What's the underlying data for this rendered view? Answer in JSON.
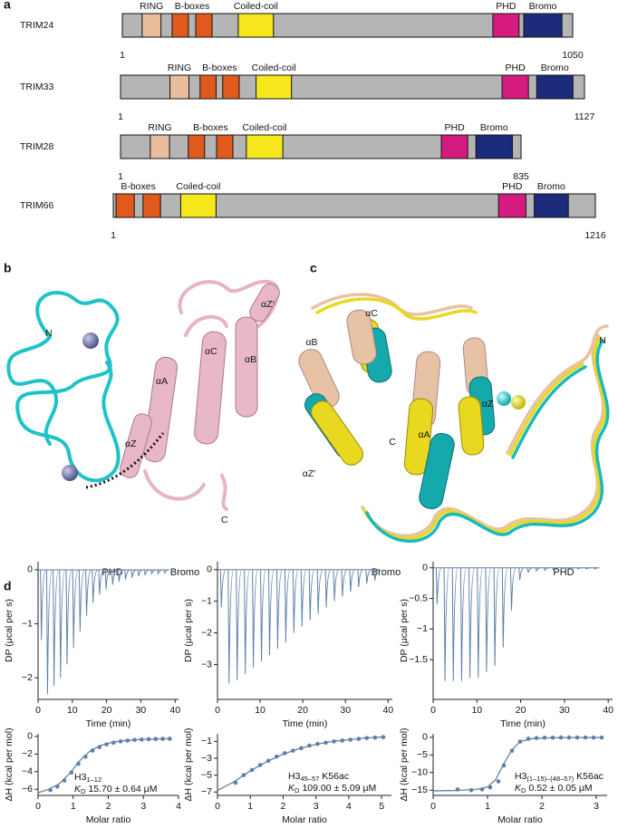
{
  "panel_a": {
    "label": "a",
    "proteins": [
      {
        "name": "TRIM24",
        "start": 1,
        "end": 1050,
        "domains": [
          {
            "label": "RING",
            "color": "#e9bd9c",
            "segments": [
              [
                47,
                91
              ]
            ]
          },
          {
            "label": "B-boxes",
            "color": "#e05a1e",
            "segments": [
              [
                117,
                155
              ],
              [
                172,
                210
              ]
            ]
          },
          {
            "label": "Coiled-coil",
            "color": "#f6e71d",
            "segments": [
              [
                271,
                353
              ]
            ]
          },
          {
            "label": "PHD",
            "color": "#d51b7f",
            "segments": [
              [
                864,
                925
              ]
            ]
          },
          {
            "label": "Bromo",
            "color": "#1d2b7d",
            "segments": [
              [
                936,
                1025
              ]
            ]
          }
        ]
      },
      {
        "name": "TRIM33",
        "start": 1,
        "end": 1127,
        "domains": [
          {
            "label": "RING",
            "color": "#e9bd9c",
            "segments": [
              [
                121,
                167
              ]
            ]
          },
          {
            "label": "B-boxes",
            "color": "#e05a1e",
            "segments": [
              [
                194,
                233
              ],
              [
                249,
                289
              ]
            ]
          },
          {
            "label": "Coiled-coil",
            "color": "#f6e71d",
            "segments": [
              [
                330,
                416
              ]
            ]
          },
          {
            "label": "PHD",
            "color": "#d51b7f",
            "segments": [
              [
                927,
                991
              ]
            ]
          },
          {
            "label": "Bromo",
            "color": "#1d2b7d",
            "segments": [
              [
                1011,
                1099
              ]
            ]
          }
        ]
      },
      {
        "name": "TRIM28",
        "start": 1,
        "end": 835,
        "domains": [
          {
            "label": "RING",
            "color": "#e9bd9c",
            "segments": [
              [
                63,
                103
              ]
            ]
          },
          {
            "label": "B-boxes",
            "color": "#e05a1e",
            "segments": [
              [
                142,
                176
              ],
              [
                201,
                235
              ]
            ]
          },
          {
            "label": "Coiled-coil",
            "color": "#f6e71d",
            "segments": [
              [
                263,
                339
              ]
            ]
          },
          {
            "label": "PHD",
            "color": "#d51b7f",
            "segments": [
              [
                669,
                724
              ]
            ]
          },
          {
            "label": "Bromo",
            "color": "#1d2b7d",
            "segments": [
              [
                741,
                817
              ]
            ]
          }
        ]
      },
      {
        "name": "TRIM66",
        "start": 1,
        "end": 1216,
        "domains": [
          {
            "label": "B-boxes",
            "color": "#e05a1e",
            "segments": [
              [
                8,
                54
              ],
              [
                76,
                120
              ]
            ]
          },
          {
            "label": "Coiled-coil",
            "color": "#f6e71d",
            "segments": [
              [
                171,
                260
              ]
            ]
          },
          {
            "label": "PHD",
            "color": "#d51b7f",
            "segments": [
              [
                972,
                1041
              ]
            ]
          },
          {
            "label": "Bromo",
            "color": "#1d2b7d",
            "segments": [
              [
                1062,
                1148
              ]
            ]
          }
        ]
      }
    ]
  },
  "panel_b": {
    "label": "b",
    "labels": [
      "N",
      "αZ′",
      "αC",
      "αB",
      "αA",
      "αZ",
      "C"
    ],
    "captions": [
      "PHD",
      "Bromo"
    ]
  },
  "panel_c": {
    "label": "c",
    "labels": [
      "αC",
      "αB",
      "N",
      "αZ",
      "αZ′",
      "C",
      "αA"
    ],
    "captions": [
      "Bromo",
      "PHD"
    ]
  },
  "panel_d": {
    "label": "d"
  },
  "chart_data": [
    {
      "type": "thermogram",
      "color": "#5f80a8",
      "xlabel": "Time (min)",
      "ylabel": "DP (μcal per s)",
      "x": [
        0.7,
        2.5,
        4.4,
        6.3,
        8.2,
        10.1,
        12,
        13.9,
        15.8,
        17.7,
        19.6,
        21.5,
        23.4,
        25.3,
        27.2,
        29.1,
        31,
        32.9,
        34.8,
        36.7
      ],
      "values": [
        -1.3,
        -2.3,
        -2.15,
        -2.0,
        -1.75,
        -1.45,
        -1.15,
        -0.85,
        -0.62,
        -0.46,
        -0.36,
        -0.28,
        -0.22,
        -0.18,
        -0.15,
        -0.12,
        -0.1,
        -0.08,
        -0.07,
        -0.06
      ],
      "xlim": [
        0,
        41
      ],
      "ylim": [
        -2.4,
        0.15
      ],
      "xticks": [
        0,
        10,
        20,
        30,
        40
      ],
      "yticks": [
        0,
        {
          "value": -1,
          "label": "−1"
        },
        {
          "value": -2,
          "label": "−2"
        }
      ]
    },
    {
      "type": "thermogram",
      "color": "#5f80a8",
      "xlabel": "Time (min)",
      "ylabel": "DP (μcal per s)",
      "x": [
        0.7,
        2.5,
        4.4,
        6.3,
        8.2,
        10.1,
        12,
        13.9,
        15.8,
        17.7,
        19.6,
        21.5,
        23.4,
        25.3,
        27.2,
        29.1,
        31,
        32.9,
        34.8,
        36.7
      ],
      "values": [
        -1.2,
        -3.6,
        -3.5,
        -3.3,
        -3.1,
        -2.9,
        -2.7,
        -2.5,
        -2.3,
        -2.0,
        -1.8,
        -1.6,
        -1.4,
        -1.2,
        -1.0,
        -0.85,
        -0.7,
        -0.55,
        -0.45,
        -0.35
      ],
      "xlim": [
        0,
        41
      ],
      "ylim": [
        -4.1,
        0.25
      ],
      "xticks": [
        0,
        10,
        20,
        30,
        40
      ],
      "yticks": [
        0,
        {
          "value": -1,
          "label": "−1"
        },
        {
          "value": -2,
          "label": "−2"
        },
        {
          "value": -3,
          "label": "−3"
        }
      ]
    },
    {
      "type": "thermogram",
      "color": "#5f80a8",
      "xlabel": "Time (min)",
      "ylabel": "DP (μcal per s)",
      "x": [
        0.7,
        2.5,
        4.4,
        6.3,
        8.2,
        10.1,
        12,
        13.9,
        15.8,
        17.7,
        19.6,
        21.5,
        23.4,
        25.3,
        27.2,
        29.1,
        31,
        32.9,
        34.8,
        36.7
      ],
      "values": [
        -0.6,
        -1.85,
        -1.85,
        -1.85,
        -1.8,
        -1.8,
        -1.7,
        -1.6,
        -1.3,
        -0.7,
        -0.2,
        -0.08,
        -0.05,
        -0.04,
        -0.03,
        -0.03,
        -0.02,
        -0.02,
        -0.02,
        -0.02
      ],
      "xlim": [
        0,
        41
      ],
      "ylim": [
        -2.15,
        0.1
      ],
      "xticks": [
        0,
        10,
        20,
        30,
        40
      ],
      "yticks": [
        0,
        {
          "value": -0.5,
          "label": "−0.5"
        },
        {
          "value": -1,
          "label": "−1"
        },
        {
          "value": -1.5,
          "label": "−1.5"
        }
      ]
    },
    {
      "type": "isotherm",
      "color": "#5f80a8",
      "xlabel": "Molar ratio",
      "ylabel": "ΔH (kcal per mol)",
      "points": {
        "x": [
          0.35,
          0.55,
          0.75,
          0.95,
          1.15,
          1.35,
          1.55,
          1.75,
          1.95,
          2.15,
          2.35,
          2.55,
          2.75,
          2.95,
          3.15,
          3.35,
          3.55,
          3.75
        ],
        "values": [
          -6.1,
          -5.7,
          -5.0,
          -4.1,
          -3.1,
          -2.3,
          -1.6,
          -1.2,
          -0.9,
          -0.7,
          -0.56,
          -0.47,
          -0.4,
          -0.35,
          -0.31,
          -0.29,
          -0.27,
          -0.26
        ]
      },
      "fit": {
        "x": [
          0,
          0.3,
          0.6,
          0.9,
          1.2,
          1.5,
          1.8,
          2.1,
          2.4,
          2.7,
          3.0,
          3.4,
          3.8
        ],
        "values": [
          -6.4,
          -6.0,
          -5.4,
          -4.2,
          -2.7,
          -1.6,
          -1.0,
          -0.68,
          -0.5,
          -0.4,
          -0.33,
          -0.28,
          -0.25
        ]
      },
      "annotation": [
        [
          "H3",
          "1–12"
        ],
        [
          "K",
          "D",
          "15.70 ± 0.64 μM"
        ]
      ],
      "xlim": [
        0,
        4
      ],
      "ylim": [
        -6.7,
        0.3
      ],
      "xticks": [
        0,
        1,
        2,
        3,
        4
      ],
      "yticks": [
        0,
        {
          "value": -2,
          "label": "−2"
        },
        {
          "value": -4,
          "label": "−4"
        },
        {
          "value": -6,
          "label": "−6"
        }
      ]
    },
    {
      "type": "isotherm",
      "color": "#5f80a8",
      "xlabel": "Molar ratio",
      "ylabel": "ΔH (kcal per mol)",
      "points": {
        "x": [
          0.55,
          0.8,
          1.05,
          1.3,
          1.55,
          1.8,
          2.05,
          2.3,
          2.55,
          2.8,
          3.05,
          3.3,
          3.55,
          3.8,
          4.05,
          4.3,
          4.55,
          4.8,
          5.05
        ],
        "values": [
          -5.9,
          -5.0,
          -4.4,
          -3.8,
          -3.3,
          -2.8,
          -2.4,
          -2.1,
          -1.8,
          -1.5,
          -1.3,
          -1.15,
          -1.0,
          -0.9,
          -0.8,
          -0.7,
          -0.6,
          -0.55,
          -0.5
        ]
      },
      "fit": {
        "x": [
          0,
          0.5,
          1,
          1.5,
          2,
          2.5,
          3,
          3.5,
          4,
          4.5,
          5
        ],
        "values": [
          -6.8,
          -5.8,
          -4.5,
          -3.4,
          -2.5,
          -1.85,
          -1.35,
          -1.0,
          -0.78,
          -0.6,
          -0.48
        ]
      },
      "annotation": [
        [
          "H3",
          "45–57",
          "K56ac"
        ],
        [
          "K",
          "D",
          "109.00 ± 5.09 μM"
        ]
      ],
      "xlim": [
        0,
        5.3
      ],
      "ylim": [
        -7.4,
        -0.1
      ],
      "xticks": [
        0,
        1,
        2,
        3,
        4,
        5
      ],
      "yticks": [
        {
          "value": -1,
          "label": "−1"
        },
        {
          "value": -3,
          "label": "−3"
        },
        {
          "value": -5,
          "label": "−5"
        },
        {
          "value": -7,
          "label": "−7"
        }
      ]
    },
    {
      "type": "isotherm",
      "color": "#5f80a8",
      "xlabel": "Molar ratio",
      "ylabel": "ΔH (kcal per mol)",
      "points": {
        "x": [
          0.45,
          0.7,
          0.9,
          1.05,
          1.2,
          1.3,
          1.45,
          1.6,
          1.75,
          1.9,
          2.05,
          2.2,
          2.35,
          2.5,
          2.65,
          2.8,
          2.95,
          3.1
        ],
        "values": [
          -14.8,
          -15,
          -14.8,
          -14.2,
          -12.5,
          -8,
          -3.8,
          -1.2,
          -0.4,
          -0.2,
          -0.1,
          -0.1,
          -0.05,
          -0.05,
          -0.05,
          -0.05,
          -0.05,
          -0.05
        ]
      },
      "fit": {
        "x": [
          0,
          0.4,
          0.8,
          1.0,
          1.15,
          1.3,
          1.45,
          1.6,
          1.8,
          2.1,
          2.5,
          3.1
        ],
        "values": [
          -15.2,
          -15.1,
          -14.8,
          -14.1,
          -12,
          -7.5,
          -3.5,
          -1.2,
          -0.4,
          -0.15,
          -0.07,
          -0.05
        ]
      },
      "annotation": [
        [
          "H3",
          "(1–15)–(48–57)",
          "K56ac"
        ],
        [
          "K",
          "D",
          "0.52 ± 0.05 μM"
        ]
      ],
      "xlim": [
        0,
        3.2
      ],
      "ylim": [
        -16.5,
        1
      ],
      "xticks": [
        0,
        1,
        2,
        3
      ],
      "yticks": [
        0,
        {
          "value": -5,
          "label": "−5"
        },
        {
          "value": -10,
          "label": "−10"
        },
        {
          "value": -15,
          "label": "−15"
        }
      ]
    }
  ]
}
